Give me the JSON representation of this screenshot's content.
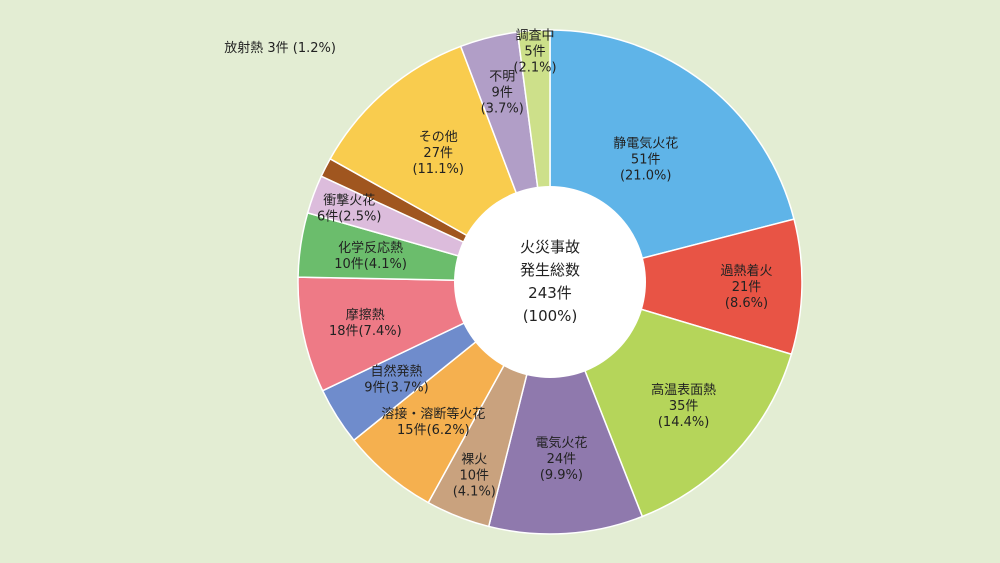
{
  "chart_data": {
    "type": "pie",
    "variant": "donut",
    "center_text": [
      "火災事故",
      "発生総数",
      "243件",
      "(100%)"
    ],
    "total": 243,
    "slices": [
      {
        "name": "静電気火花",
        "value": 51,
        "count_label": "51件",
        "percent_label": "(21.0%)",
        "color": "#5fb4e8"
      },
      {
        "name": "過熱着火",
        "value": 21,
        "count_label": "21件",
        "percent_label": "(8.6%)",
        "color": "#e85445"
      },
      {
        "name": "高温表面熱",
        "value": 35,
        "count_label": "35件",
        "percent_label": "(14.4%)",
        "color": "#b5d55a"
      },
      {
        "name": "電気火花",
        "value": 24,
        "count_label": "24件",
        "percent_label": "(9.9%)",
        "color": "#8f79ad"
      },
      {
        "name": "裸火",
        "value": 10,
        "count_label": "10件",
        "percent_label": "(4.1%)",
        "color": "#c9a27e"
      },
      {
        "name": "溶接・溶断等火花",
        "value": 15,
        "count_label": "15件(6.2%)",
        "percent_label": "",
        "color": "#f5b04f"
      },
      {
        "name": "自然発熱",
        "value": 9,
        "count_label": "9件(3.7%)",
        "percent_label": "",
        "color": "#6f8ccc"
      },
      {
        "name": "摩擦熱",
        "value": 18,
        "count_label": "18件(7.4%)",
        "percent_label": "",
        "color": "#ee7a86"
      },
      {
        "name": "化学反応熱",
        "value": 10,
        "count_label": "10件(4.1%)",
        "percent_label": "",
        "color": "#6bbd6c"
      },
      {
        "name": "衝撃火花",
        "value": 6,
        "count_label": "6件(2.5%)",
        "percent_label": "",
        "color": "#dcbcdc"
      },
      {
        "name": "放射熱 3件 (1.2%)",
        "value": 3,
        "count_label": "",
        "percent_label": "",
        "color": "#a0561f"
      },
      {
        "name": "その他",
        "value": 27,
        "count_label": "27件",
        "percent_label": "(11.1%)",
        "color": "#f9cc4e"
      },
      {
        "name": "不明",
        "value": 9,
        "count_label": "9件",
        "percent_label": "(3.7%)",
        "color": "#b19ec7"
      },
      {
        "name": "調査中",
        "value": 5,
        "count_label": "5件",
        "percent_label": "(2.1%)",
        "color": "#cde08a"
      }
    ]
  }
}
